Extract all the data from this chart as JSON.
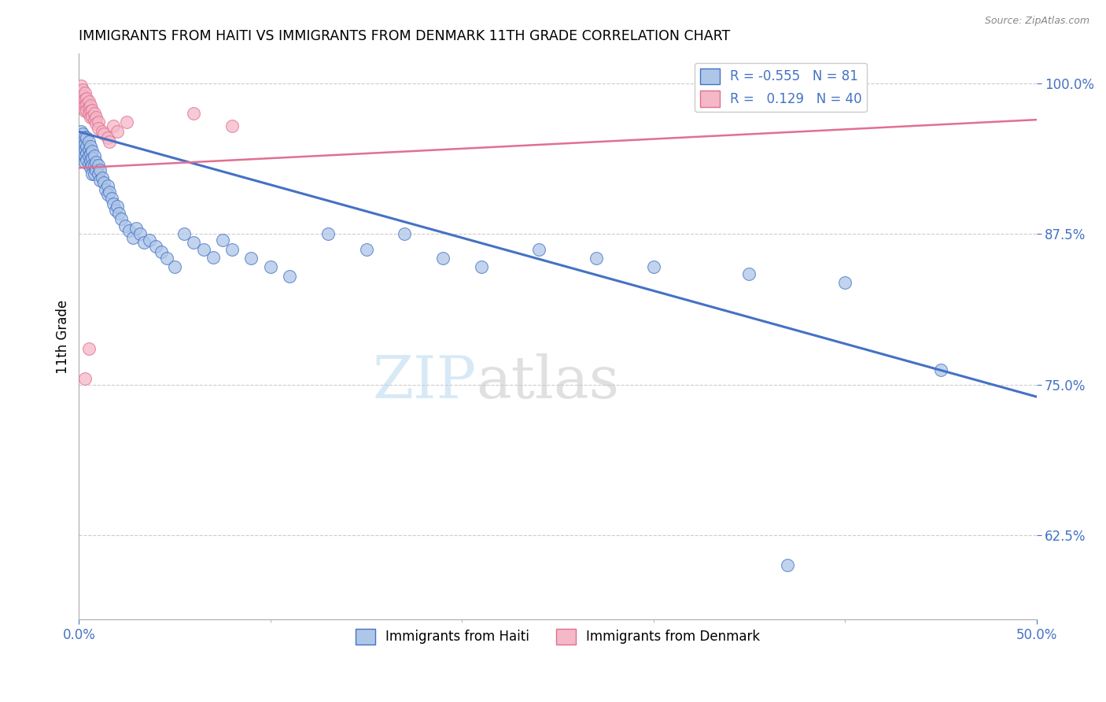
{
  "title": "IMMIGRANTS FROM HAITI VS IMMIGRANTS FROM DENMARK 11TH GRADE CORRELATION CHART",
  "source": "Source: ZipAtlas.com",
  "xmin": 0.0,
  "xmax": 0.5,
  "ymin": 0.555,
  "ymax": 1.025,
  "ylabel": "11th Grade",
  "watermark_zip": "ZIP",
  "watermark_atlas": "atlas",
  "legend_haiti": "Immigrants from Haiti",
  "legend_denmark": "Immigrants from Denmark",
  "R_haiti": -0.555,
  "N_haiti": 81,
  "R_denmark": 0.129,
  "N_denmark": 40,
  "color_haiti": "#aec6e8",
  "color_denmark": "#f4b8c8",
  "line_haiti": "#4472c4",
  "line_denmark": "#e07090",
  "axis_label_color": "#4472c4",
  "grid_color": "#cccccc",
  "haiti_line_x0": 0.0,
  "haiti_line_y0": 0.96,
  "haiti_line_x1": 0.5,
  "haiti_line_y1": 0.74,
  "denmark_line_x0": 0.0,
  "denmark_line_y0": 0.93,
  "denmark_line_x1": 0.5,
  "denmark_line_y1": 0.97,
  "haiti_x": [
    0.001,
    0.001,
    0.001,
    0.002,
    0.002,
    0.002,
    0.002,
    0.003,
    0.003,
    0.003,
    0.003,
    0.003,
    0.004,
    0.004,
    0.004,
    0.004,
    0.005,
    0.005,
    0.005,
    0.005,
    0.006,
    0.006,
    0.006,
    0.006,
    0.007,
    0.007,
    0.007,
    0.007,
    0.008,
    0.008,
    0.008,
    0.009,
    0.009,
    0.01,
    0.01,
    0.011,
    0.011,
    0.012,
    0.013,
    0.014,
    0.015,
    0.015,
    0.016,
    0.017,
    0.018,
    0.019,
    0.02,
    0.021,
    0.022,
    0.024,
    0.026,
    0.028,
    0.03,
    0.032,
    0.034,
    0.037,
    0.04,
    0.043,
    0.046,
    0.05,
    0.055,
    0.06,
    0.065,
    0.07,
    0.075,
    0.08,
    0.09,
    0.1,
    0.11,
    0.13,
    0.15,
    0.17,
    0.19,
    0.21,
    0.24,
    0.27,
    0.3,
    0.35,
    0.4,
    0.45,
    0.37
  ],
  "haiti_y": [
    0.96,
    0.955,
    0.95,
    0.958,
    0.952,
    0.948,
    0.942,
    0.956,
    0.95,
    0.945,
    0.94,
    0.935,
    0.955,
    0.948,
    0.942,
    0.937,
    0.952,
    0.945,
    0.94,
    0.933,
    0.948,
    0.942,
    0.936,
    0.93,
    0.944,
    0.938,
    0.932,
    0.925,
    0.94,
    0.932,
    0.925,
    0.935,
    0.928,
    0.932,
    0.925,
    0.928,
    0.92,
    0.922,
    0.918,
    0.912,
    0.915,
    0.908,
    0.91,
    0.905,
    0.9,
    0.895,
    0.898,
    0.892,
    0.888,
    0.882,
    0.878,
    0.872,
    0.88,
    0.875,
    0.868,
    0.87,
    0.865,
    0.86,
    0.855,
    0.848,
    0.875,
    0.868,
    0.862,
    0.856,
    0.87,
    0.862,
    0.855,
    0.848,
    0.84,
    0.875,
    0.862,
    0.875,
    0.855,
    0.848,
    0.862,
    0.855,
    0.848,
    0.842,
    0.835,
    0.762,
    0.6
  ],
  "denmark_x": [
    0.001,
    0.001,
    0.001,
    0.001,
    0.002,
    0.002,
    0.002,
    0.002,
    0.003,
    0.003,
    0.003,
    0.003,
    0.004,
    0.004,
    0.004,
    0.005,
    0.005,
    0.005,
    0.006,
    0.006,
    0.006,
    0.007,
    0.007,
    0.008,
    0.008,
    0.009,
    0.009,
    0.01,
    0.01,
    0.012,
    0.013,
    0.015,
    0.016,
    0.018,
    0.02,
    0.025,
    0.003,
    0.005,
    0.06,
    0.08
  ],
  "denmark_y": [
    0.998,
    0.993,
    0.988,
    0.983,
    0.995,
    0.99,
    0.985,
    0.98,
    0.992,
    0.987,
    0.982,
    0.977,
    0.988,
    0.983,
    0.978,
    0.985,
    0.98,
    0.975,
    0.982,
    0.977,
    0.972,
    0.978,
    0.973,
    0.975,
    0.97,
    0.972,
    0.967,
    0.968,
    0.963,
    0.96,
    0.958,
    0.955,
    0.952,
    0.965,
    0.96,
    0.968,
    0.755,
    0.78,
    0.975,
    0.965
  ]
}
